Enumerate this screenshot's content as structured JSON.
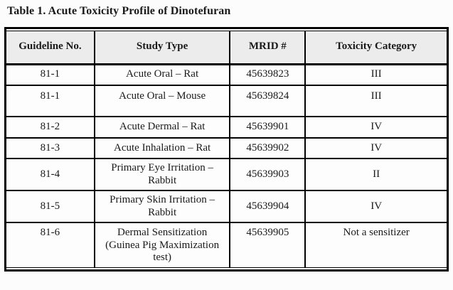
{
  "title": "Table 1. Acute Toxicity Profile of Dinotefuran",
  "table": {
    "columns": [
      "Guideline No.",
      "Study Type",
      "MRID #",
      "Toxicity Category"
    ],
    "rows": [
      {
        "guideline": "81-1",
        "study_type": "Acute Oral – Rat",
        "mrid": "45639823",
        "toxicity_category": "III"
      },
      {
        "guideline": "81-1",
        "study_type": "Acute Oral – Mouse",
        "mrid": "45639824",
        "toxicity_category": "III"
      },
      {
        "guideline": "81-2",
        "study_type": "Acute Dermal – Rat",
        "mrid": "45639901",
        "toxicity_category": "IV"
      },
      {
        "guideline": "81-3",
        "study_type": "Acute Inhalation – Rat",
        "mrid": "45639902",
        "toxicity_category": "IV"
      },
      {
        "guideline": "81-4",
        "study_type": "Primary Eye Irritation – Rabbit",
        "mrid": "45639903",
        "toxicity_category": "II"
      },
      {
        "guideline": "81-5",
        "study_type": "Primary Skin Irritation – Rabbit",
        "mrid": "45639904",
        "toxicity_category": "IV"
      },
      {
        "guideline": "81-6",
        "study_type": "Dermal Sensitization (Guinea Pig Maximization test)",
        "mrid": "45639905",
        "toxicity_category": "Not a sensitizer"
      }
    ]
  },
  "colors": {
    "header_bg": "#ececec",
    "border": "#000000",
    "page_bg": "#fcfcfc",
    "text": "#1a1a1a"
  }
}
